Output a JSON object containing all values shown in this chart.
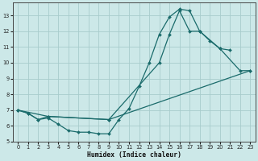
{
  "xlabel": "Humidex (Indice chaleur)",
  "bg_color": "#cce8e8",
  "grid_color": "#a8cccc",
  "line_color": "#1a6b6b",
  "xlim": [
    -0.5,
    23.5
  ],
  "ylim": [
    5,
    13.8
  ],
  "yticks": [
    5,
    6,
    7,
    8,
    9,
    10,
    11,
    12,
    13
  ],
  "xticks": [
    0,
    1,
    2,
    3,
    4,
    5,
    6,
    7,
    8,
    9,
    10,
    11,
    12,
    13,
    14,
    15,
    16,
    17,
    18,
    19,
    20,
    21,
    22,
    23
  ],
  "line1_x": [
    0,
    1,
    2,
    3,
    4,
    5,
    6,
    7,
    8,
    9,
    10,
    11,
    12,
    13,
    14,
    15,
    16,
    17,
    18,
    19,
    20,
    21
  ],
  "line1_y": [
    7.0,
    6.8,
    6.4,
    6.5,
    6.1,
    5.7,
    5.6,
    5.6,
    5.5,
    5.5,
    6.4,
    7.1,
    8.5,
    10.0,
    11.8,
    12.9,
    13.4,
    13.3,
    12.0,
    11.4,
    10.9,
    10.8
  ],
  "line2_x": [
    0,
    1,
    2,
    3,
    9,
    14,
    15,
    16,
    17,
    18,
    20,
    22,
    23
  ],
  "line2_y": [
    7.0,
    6.8,
    6.4,
    6.6,
    6.4,
    10.0,
    11.8,
    13.3,
    12.0,
    12.0,
    10.9,
    9.5,
    9.5
  ],
  "line3_x": [
    0,
    3,
    9,
    23
  ],
  "line3_y": [
    7.0,
    6.6,
    6.4,
    9.5
  ]
}
